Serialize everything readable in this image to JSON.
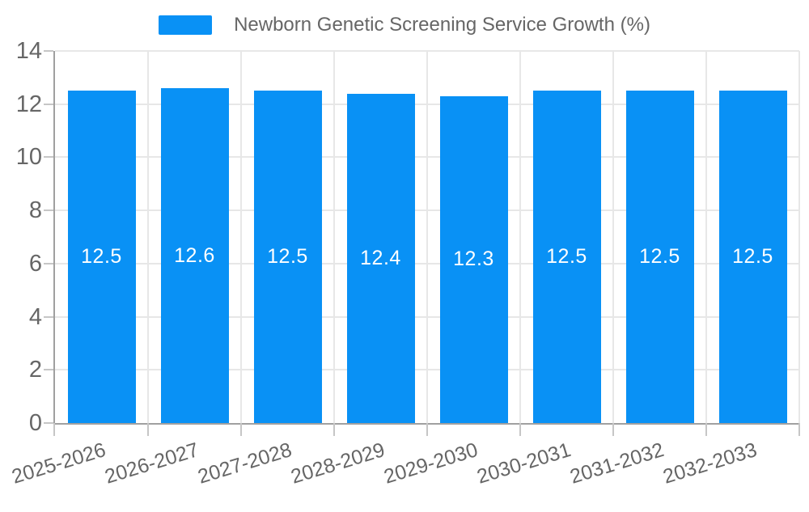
{
  "legend": {
    "label": "Newborn Genetic Screening Service Growth (%)"
  },
  "chart_data": {
    "type": "bar",
    "title": "Newborn Genetic Screening Service Growth (%)",
    "categories": [
      "2025-2026",
      "2026-2027",
      "2027-2028",
      "2028-2029",
      "2029-2030",
      "2030-2031",
      "2031-2032",
      "2032-2033"
    ],
    "values": [
      12.5,
      12.6,
      12.5,
      12.4,
      12.3,
      12.5,
      12.5,
      12.5
    ],
    "data_labels": [
      "12.5",
      "12.6",
      "12.5",
      "12.4",
      "12.3",
      "12.5",
      "12.5",
      "12.5"
    ],
    "xlabel": "",
    "ylabel": "",
    "ylim": [
      0,
      14
    ],
    "yticks": [
      0,
      2,
      4,
      6,
      8,
      10,
      12,
      14
    ],
    "grid": true,
    "legend_position": "top-center"
  },
  "colors": {
    "bar": "#0991f5",
    "grid": "#e7e7e7",
    "axis": "#a0a0a0",
    "tick": "#c6c6c6",
    "text": "#666666",
    "bar_label": "#ffffff",
    "background": "#ffffff"
  }
}
